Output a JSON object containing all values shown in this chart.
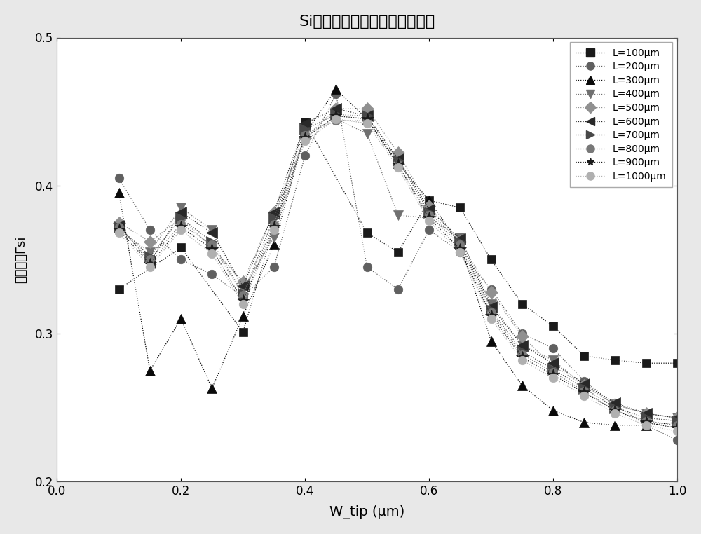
{
  "title": "Si波导中模式限制因子模拟结果",
  "xlabel": "W_tip (μm)",
  "ylabel": "限制因子Γsi",
  "xlim": [
    0.0,
    1.0
  ],
  "ylim": [
    0.2,
    0.5
  ],
  "xticks": [
    0.0,
    0.2,
    0.4,
    0.6,
    0.8,
    1.0
  ],
  "yticks": [
    0.2,
    0.3,
    0.4,
    0.5
  ],
  "series": [
    {
      "label": "L=100μm",
      "color": "#1a1a1a",
      "marker": "s",
      "x": [
        0.1,
        0.2,
        0.3,
        0.4,
        0.5,
        0.55,
        0.6,
        0.65,
        0.7,
        0.75,
        0.8,
        0.85,
        0.9,
        0.95,
        1.0
      ],
      "y": [
        0.33,
        0.358,
        0.301,
        0.443,
        0.368,
        0.355,
        0.39,
        0.385,
        0.35,
        0.32,
        0.305,
        0.285,
        0.282,
        0.28,
        0.28
      ]
    },
    {
      "label": "L=200μm",
      "color": "#606060",
      "marker": "o",
      "x": [
        0.1,
        0.15,
        0.2,
        0.25,
        0.3,
        0.35,
        0.4,
        0.45,
        0.5,
        0.55,
        0.6,
        0.65,
        0.7,
        0.75,
        0.8,
        0.85,
        0.9,
        0.95,
        1.0
      ],
      "y": [
        0.405,
        0.37,
        0.35,
        0.34,
        0.325,
        0.345,
        0.42,
        0.462,
        0.345,
        0.33,
        0.37,
        0.355,
        0.33,
        0.3,
        0.29,
        0.268,
        0.252,
        0.238,
        0.228
      ]
    },
    {
      "label": "L=300μm",
      "color": "#0a0a0a",
      "marker": "^",
      "x": [
        0.1,
        0.15,
        0.2,
        0.25,
        0.3,
        0.35,
        0.4,
        0.45,
        0.5,
        0.55,
        0.6,
        0.65,
        0.7,
        0.75,
        0.8,
        0.85,
        0.9,
        0.95,
        1.0
      ],
      "y": [
        0.395,
        0.275,
        0.31,
        0.263,
        0.312,
        0.36,
        0.435,
        0.465,
        0.445,
        0.415,
        0.39,
        0.36,
        0.295,
        0.265,
        0.248,
        0.24,
        0.238,
        0.238,
        0.24
      ]
    },
    {
      "label": "L=400μm",
      "color": "#707070",
      "marker": "v",
      "x": [
        0.1,
        0.15,
        0.2,
        0.25,
        0.3,
        0.35,
        0.4,
        0.45,
        0.5,
        0.55,
        0.6,
        0.65,
        0.7,
        0.75,
        0.8,
        0.85,
        0.9,
        0.95,
        1.0
      ],
      "y": [
        0.37,
        0.355,
        0.385,
        0.37,
        0.33,
        0.365,
        0.435,
        0.445,
        0.435,
        0.38,
        0.378,
        0.365,
        0.32,
        0.292,
        0.282,
        0.265,
        0.252,
        0.246,
        0.243
      ]
    },
    {
      "label": "L=500μm",
      "color": "#909090",
      "marker": "D",
      "x": [
        0.1,
        0.15,
        0.2,
        0.25,
        0.3,
        0.35,
        0.4,
        0.45,
        0.5,
        0.55,
        0.6,
        0.65,
        0.7,
        0.75,
        0.8,
        0.85,
        0.9,
        0.95,
        1.0
      ],
      "y": [
        0.375,
        0.362,
        0.378,
        0.358,
        0.335,
        0.382,
        0.432,
        0.452,
        0.452,
        0.422,
        0.386,
        0.362,
        0.328,
        0.298,
        0.278,
        0.265,
        0.252,
        0.246,
        0.243
      ]
    },
    {
      "label": "L=600μm",
      "color": "#282828",
      "marker": "4",
      "x": [
        0.1,
        0.15,
        0.2,
        0.25,
        0.3,
        0.35,
        0.4,
        0.45,
        0.5,
        0.55,
        0.6,
        0.65,
        0.7,
        0.75,
        0.8,
        0.85,
        0.9,
        0.95,
        1.0
      ],
      "y": [
        0.373,
        0.348,
        0.382,
        0.368,
        0.332,
        0.382,
        0.442,
        0.452,
        0.447,
        0.418,
        0.384,
        0.364,
        0.318,
        0.292,
        0.28,
        0.266,
        0.253,
        0.246,
        0.243
      ]
    },
    {
      "label": "L=700μm",
      "color": "#484848",
      "marker": "3",
      "x": [
        0.1,
        0.15,
        0.2,
        0.25,
        0.3,
        0.35,
        0.4,
        0.45,
        0.5,
        0.55,
        0.6,
        0.65,
        0.7,
        0.75,
        0.8,
        0.85,
        0.9,
        0.95,
        1.0
      ],
      "y": [
        0.372,
        0.352,
        0.378,
        0.362,
        0.327,
        0.378,
        0.438,
        0.448,
        0.447,
        0.417,
        0.382,
        0.362,
        0.316,
        0.288,
        0.276,
        0.263,
        0.25,
        0.243,
        0.241
      ]
    },
    {
      "label": "L=800μm",
      "color": "#787878",
      "marker": "o",
      "x": [
        0.1,
        0.15,
        0.2,
        0.25,
        0.3,
        0.35,
        0.4,
        0.45,
        0.5,
        0.55,
        0.6,
        0.65,
        0.7,
        0.75,
        0.8,
        0.85,
        0.9,
        0.95,
        1.0
      ],
      "y": [
        0.372,
        0.35,
        0.374,
        0.36,
        0.326,
        0.374,
        0.434,
        0.444,
        0.444,
        0.414,
        0.38,
        0.36,
        0.314,
        0.286,
        0.274,
        0.261,
        0.248,
        0.241,
        0.238
      ]
    },
    {
      "label": "L=900μm",
      "color": "#1a1a1a",
      "marker": "*",
      "x": [
        0.1,
        0.15,
        0.2,
        0.25,
        0.3,
        0.35,
        0.4,
        0.45,
        0.5,
        0.55,
        0.6,
        0.65,
        0.7,
        0.75,
        0.8,
        0.85,
        0.9,
        0.95,
        1.0
      ],
      "y": [
        0.37,
        0.347,
        0.372,
        0.357,
        0.322,
        0.372,
        0.432,
        0.447,
        0.445,
        0.414,
        0.378,
        0.357,
        0.312,
        0.284,
        0.272,
        0.26,
        0.248,
        0.24,
        0.236
      ]
    },
    {
      "label": "L=1000μm",
      "color": "#b0b0b0",
      "marker": "o",
      "x": [
        0.1,
        0.15,
        0.2,
        0.25,
        0.3,
        0.35,
        0.4,
        0.45,
        0.5,
        0.55,
        0.6,
        0.65,
        0.7,
        0.75,
        0.8,
        0.85,
        0.9,
        0.95,
        1.0
      ],
      "y": [
        0.368,
        0.345,
        0.37,
        0.354,
        0.32,
        0.37,
        0.43,
        0.445,
        0.442,
        0.412,
        0.376,
        0.355,
        0.31,
        0.282,
        0.27,
        0.258,
        0.246,
        0.238,
        0.234
      ]
    }
  ]
}
